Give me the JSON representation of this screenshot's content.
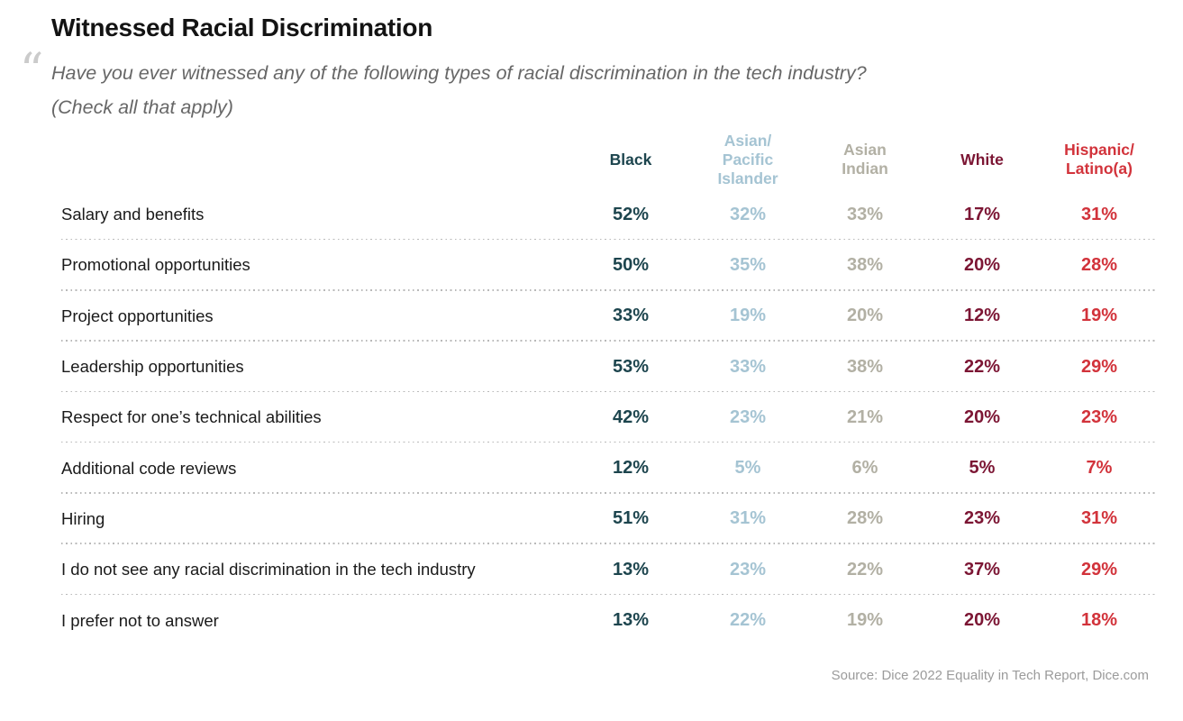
{
  "page": {
    "title": "Witnessed Racial Discrimination",
    "quote_mark": "“",
    "question_line1": "Have you ever witnessed any of the following types of racial discrimination in the tech industry?",
    "question_line2": "(Check all that apply)",
    "source": "Source: Dice 2022 Equality in Tech Report, Dice.com"
  },
  "colors": {
    "black_column": "#1d454e",
    "asian_pacific_islander_column": "#a5c4d3",
    "asian_indian_column": "#b2b0a4",
    "white_column": "#7c1634",
    "hispanic_latino_column": "#d2333b",
    "separator": "#b9b9b9"
  },
  "chart_data": {
    "type": "table",
    "title": "Witnessed Racial Discrimination",
    "question": "Have you ever witnessed any of the following types of racial discrimination in the tech industry? (Check all that apply)",
    "columns": [
      {
        "label": "Black",
        "display": "Black",
        "color": "#1d454e"
      },
      {
        "label": "Asian/Pacific Islander",
        "display": "Asian/\nPacific\nIslander",
        "color": "#a5c4d3"
      },
      {
        "label": "Asian Indian",
        "display": "Asian\nIndian",
        "color": "#b2b0a4"
      },
      {
        "label": "White",
        "display": "White",
        "color": "#7c1634"
      },
      {
        "label": "Hispanic/Latino(a)",
        "display": "Hispanic/\nLatino(a)",
        "color": "#d2333b"
      }
    ],
    "rows": [
      {
        "label": "Salary and benefits",
        "values": [
          "52%",
          "32%",
          "33%",
          "17%",
          "31%"
        ]
      },
      {
        "label": "Promotional opportunities",
        "values": [
          "50%",
          "35%",
          "38%",
          "20%",
          "28%"
        ]
      },
      {
        "label": "Project opportunities",
        "values": [
          "33%",
          "19%",
          "20%",
          "12%",
          "19%"
        ]
      },
      {
        "label": "Leadership opportunities",
        "values": [
          "53%",
          "33%",
          "38%",
          "22%",
          "29%"
        ]
      },
      {
        "label": "Respect for one’s technical abilities",
        "values": [
          "42%",
          "23%",
          "21%",
          "20%",
          "23%"
        ]
      },
      {
        "label": "Additional code reviews",
        "values": [
          "12%",
          "5%",
          "6%",
          "5%",
          "7%"
        ]
      },
      {
        "label": "Hiring",
        "values": [
          "51%",
          "31%",
          "28%",
          "23%",
          "31%"
        ]
      },
      {
        "label": "I do not see any racial discrimination in the tech industry",
        "values": [
          "13%",
          "23%",
          "22%",
          "37%",
          "29%"
        ]
      },
      {
        "label": "I prefer not to answer",
        "values": [
          "13%",
          "22%",
          "19%",
          "20%",
          "18%"
        ]
      }
    ],
    "source": "Source: Dice 2022 Equality in Tech Report, Dice.com"
  }
}
